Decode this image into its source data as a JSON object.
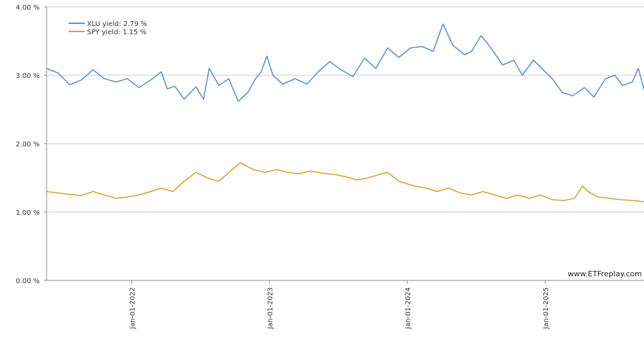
{
  "chart_data": {
    "type": "line",
    "title": "",
    "xlabel": "",
    "ylabel": "",
    "ylim": [
      0,
      4
    ],
    "xlim": [
      "2021-05-20",
      "2025-09-20"
    ],
    "grid": "horizontal",
    "legend_position": "top-left",
    "credit": "www.ETFreplay.com",
    "y_ticks": [
      "0.00 %",
      "1.00 %",
      "2.00 %",
      "3.00 %",
      "4.00 %"
    ],
    "x_ticks": [
      {
        "date": "2022-01-01",
        "label": "Jan-01-2022"
      },
      {
        "date": "2023-01-01",
        "label": "Jan-01-2023"
      },
      {
        "date": "2024-01-01",
        "label": "Jan-01-2024"
      },
      {
        "date": "2025-01-01",
        "label": "Jan-01-2025"
      }
    ],
    "series": [
      {
        "name": "XLU yield: 2.79 %",
        "color": "#5b8ee0",
        "points": [
          [
            "2021-05-20",
            3.1
          ],
          [
            "2021-06-20",
            3.03
          ],
          [
            "2021-07-20",
            2.86
          ],
          [
            "2021-08-20",
            2.93
          ],
          [
            "2021-09-20",
            3.08
          ],
          [
            "2021-10-20",
            2.95
          ],
          [
            "2021-11-20",
            2.9
          ],
          [
            "2021-12-20",
            2.95
          ],
          [
            "2022-01-20",
            2.82
          ],
          [
            "2022-02-20",
            2.93
          ],
          [
            "2022-03-20",
            3.05
          ],
          [
            "2022-04-05",
            2.8
          ],
          [
            "2022-04-25",
            2.84
          ],
          [
            "2022-05-20",
            2.65
          ],
          [
            "2022-06-20",
            2.83
          ],
          [
            "2022-07-10",
            2.65
          ],
          [
            "2022-07-25",
            3.1
          ],
          [
            "2022-08-20",
            2.85
          ],
          [
            "2022-09-15",
            2.95
          ],
          [
            "2022-10-10",
            2.62
          ],
          [
            "2022-11-05",
            2.75
          ],
          [
            "2022-11-25",
            2.95
          ],
          [
            "2022-12-10",
            3.05
          ],
          [
            "2022-12-25",
            3.28
          ],
          [
            "2023-01-10",
            3.0
          ],
          [
            "2023-02-05",
            2.87
          ],
          [
            "2023-03-10",
            2.95
          ],
          [
            "2023-04-10",
            2.87
          ],
          [
            "2023-05-10",
            3.05
          ],
          [
            "2023-06-10",
            3.2
          ],
          [
            "2023-07-10",
            3.08
          ],
          [
            "2023-08-10",
            2.98
          ],
          [
            "2023-09-10",
            3.25
          ],
          [
            "2023-10-10",
            3.1
          ],
          [
            "2023-11-10",
            3.4
          ],
          [
            "2023-12-10",
            3.26
          ],
          [
            "2024-01-10",
            3.4
          ],
          [
            "2024-02-10",
            3.42
          ],
          [
            "2024-03-10",
            3.35
          ],
          [
            "2024-04-05",
            3.75
          ],
          [
            "2024-05-01",
            3.44
          ],
          [
            "2024-06-01",
            3.3
          ],
          [
            "2024-06-20",
            3.35
          ],
          [
            "2024-07-15",
            3.58
          ],
          [
            "2024-08-10",
            3.4
          ],
          [
            "2024-09-10",
            3.15
          ],
          [
            "2024-10-10",
            3.22
          ],
          [
            "2024-11-01",
            3.0
          ],
          [
            "2024-12-01",
            3.22
          ],
          [
            "2025-01-01",
            3.05
          ],
          [
            "2025-01-20",
            2.95
          ],
          [
            "2025-02-15",
            2.75
          ],
          [
            "2025-03-15",
            2.7
          ],
          [
            "2025-04-15",
            2.82
          ],
          [
            "2025-05-10",
            2.68
          ],
          [
            "2025-06-10",
            2.95
          ],
          [
            "2025-07-05",
            3.0
          ],
          [
            "2025-07-25",
            2.85
          ],
          [
            "2025-08-20",
            2.9
          ],
          [
            "2025-09-05",
            3.1
          ],
          [
            "2025-09-20",
            2.79
          ]
        ]
      },
      {
        "name": "SPY yield: 1.15 %",
        "color": "#d4a12a",
        "points": [
          [
            "2021-05-20",
            1.3
          ],
          [
            "2021-07-01",
            1.27
          ],
          [
            "2021-08-20",
            1.24
          ],
          [
            "2021-09-20",
            1.3
          ],
          [
            "2021-10-20",
            1.25
          ],
          [
            "2021-11-20",
            1.2
          ],
          [
            "2021-12-20",
            1.22
          ],
          [
            "2022-01-20",
            1.25
          ],
          [
            "2022-02-20",
            1.3
          ],
          [
            "2022-03-20",
            1.35
          ],
          [
            "2022-04-20",
            1.3
          ],
          [
            "2022-05-20",
            1.45
          ],
          [
            "2022-06-20",
            1.58
          ],
          [
            "2022-07-20",
            1.5
          ],
          [
            "2022-08-20",
            1.45
          ],
          [
            "2022-09-20",
            1.6
          ],
          [
            "2022-10-15",
            1.72
          ],
          [
            "2022-11-20",
            1.62
          ],
          [
            "2022-12-20",
            1.58
          ],
          [
            "2023-01-20",
            1.62
          ],
          [
            "2023-02-20",
            1.58
          ],
          [
            "2023-03-20",
            1.56
          ],
          [
            "2023-04-20",
            1.6
          ],
          [
            "2023-05-20",
            1.57
          ],
          [
            "2023-06-20",
            1.55
          ],
          [
            "2023-07-20",
            1.52
          ],
          [
            "2023-08-20",
            1.47
          ],
          [
            "2023-09-20",
            1.5
          ],
          [
            "2023-10-20",
            1.55
          ],
          [
            "2023-11-10",
            1.58
          ],
          [
            "2023-12-10",
            1.45
          ],
          [
            "2024-01-20",
            1.38
          ],
          [
            "2024-02-20",
            1.35
          ],
          [
            "2024-03-20",
            1.3
          ],
          [
            "2024-04-20",
            1.35
          ],
          [
            "2024-05-20",
            1.28
          ],
          [
            "2024-06-20",
            1.25
          ],
          [
            "2024-07-20",
            1.3
          ],
          [
            "2024-08-20",
            1.25
          ],
          [
            "2024-09-20",
            1.2
          ],
          [
            "2024-10-20",
            1.25
          ],
          [
            "2024-11-20",
            1.2
          ],
          [
            "2024-12-20",
            1.25
          ],
          [
            "2025-01-20",
            1.18
          ],
          [
            "2025-02-20",
            1.17
          ],
          [
            "2025-03-20",
            1.2
          ],
          [
            "2025-04-10",
            1.38
          ],
          [
            "2025-04-25",
            1.3
          ],
          [
            "2025-05-20",
            1.22
          ],
          [
            "2025-06-20",
            1.2
          ],
          [
            "2025-07-20",
            1.18
          ],
          [
            "2025-08-20",
            1.17
          ],
          [
            "2025-09-20",
            1.15
          ]
        ]
      }
    ]
  }
}
